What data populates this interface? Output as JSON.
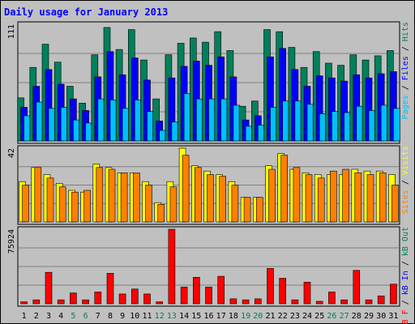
{
  "chart_data": {
    "title": "Daily usage for January 2013",
    "type": "bar",
    "categories": [
      "1",
      "2",
      "3",
      "4",
      "5",
      "6",
      "7",
      "8",
      "9",
      "10",
      "11",
      "12",
      "13",
      "14",
      "15",
      "16",
      "17",
      "18",
      "19",
      "20",
      "21",
      "22",
      "23",
      "24",
      "25",
      "26",
      "27",
      "28",
      "29",
      "30",
      "31"
    ],
    "weekend_categories": [
      "5",
      "6",
      "12",
      "13",
      "19",
      "20",
      "26",
      "27"
    ],
    "panels": [
      {
        "id": "hits",
        "tick_label": "111",
        "ylim": [
          0,
          111
        ],
        "side_labels": [
          "Pages",
          "Files",
          "Hits"
        ],
        "series": [
          {
            "name": "Hits",
            "color": "#00805c",
            "values": [
              41,
              70,
              92,
              75,
              52,
              36,
              82,
              108,
              87,
              106,
              77,
              40,
              82,
              93,
              98,
              94,
              104,
              86,
              33,
              38,
              106,
              104,
              89,
              70,
              85,
              74,
              72,
              82,
              77,
              81,
              86
            ]
          },
          {
            "name": "Files",
            "color": "#0000ff",
            "values": [
              32,
              52,
              68,
              54,
              40,
              29,
              61,
              85,
              63,
              79,
              58,
              19,
              60,
              71,
              76,
              72,
              80,
              61,
              20,
              24,
              80,
              88,
              68,
              52,
              62,
              60,
              57,
              63,
              60,
              64,
              66
            ]
          },
          {
            "name": "Pages",
            "color": "#00c0ff",
            "values": [
              24,
              37,
              31,
              32,
              20,
              17,
              40,
              39,
              31,
              39,
              28,
              10,
              18,
              45,
              40,
              40,
              40,
              34,
              14,
              15,
              32,
              38,
              38,
              35,
              26,
              28,
              27,
              33,
              29,
              34,
              31
            ]
          }
        ]
      },
      {
        "id": "visits",
        "tick_label": "42",
        "ylim": [
          0,
          42
        ],
        "side_labels": [
          "Sites",
          "Visits"
        ],
        "series": [
          {
            "name": "Visits",
            "color": "#ffff00",
            "values": [
              23,
              31,
              27,
              22,
              18,
              17,
              33,
              31,
              28,
              28,
              23,
              11,
              23,
              42,
              32,
              29,
              27,
              23,
              14,
              14,
              32,
              39,
              30,
              28,
              27,
              27,
              27,
              30,
              29,
              29,
              27
            ]
          },
          {
            "name": "Sites",
            "color": "#ff8000",
            "values": [
              21,
              31,
              25,
              20,
              17,
              18,
              31,
              30,
              28,
              28,
              21,
              10,
              20,
              38,
              31,
              27,
              26,
              21,
              14,
              14,
              30,
              38,
              31,
              27,
              25,
              29,
              30,
              28,
              27,
              28,
              21
            ]
          }
        ]
      },
      {
        "id": "kbytes",
        "tick_label": "75924",
        "ylim": [
          0,
          75924
        ],
        "side_labels": [
          "kB F",
          "kB In",
          "kB Out"
        ],
        "series": [
          {
            "name": "kB F",
            "color": "#ff0000",
            "values": [
              2000,
              4000,
              32000,
              4000,
              11000,
              4000,
              12000,
              31000,
              10000,
              15000,
              10000,
              2000,
              75924,
              17000,
              27000,
              17000,
              28000,
              5000,
              4000,
              5000,
              36000,
              26000,
              4000,
              22000,
              2500,
              12000,
              4000,
              34000,
              4000,
              8000,
              20000
            ]
          }
        ]
      }
    ]
  },
  "colors": {
    "title": "#0000ff",
    "panel_bg": "#c0c0c0",
    "grid": "#808080",
    "weekday_label": "#000000",
    "weekend_label": "#00805c",
    "label_pages": "#00c0ff",
    "label_files": "#0000ff",
    "label_hits": "#00805c",
    "label_sites": "#ff8000",
    "label_visits": "#ffff00",
    "label_kbf": "#ff0000",
    "label_kbin": "#0000ff",
    "label_kbout": "#00805c"
  }
}
